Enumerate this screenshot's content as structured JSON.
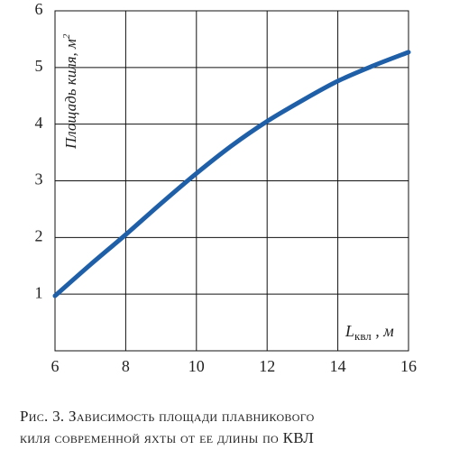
{
  "chart_data": {
    "type": "line",
    "x": [
      6,
      7,
      8,
      9,
      10,
      11,
      12,
      13,
      14,
      15,
      16
    ],
    "values": [
      0.97,
      1.52,
      2.05,
      2.6,
      3.13,
      3.62,
      4.05,
      4.42,
      4.76,
      5.03,
      5.27
    ],
    "color": "#1f5fa8",
    "xlim": [
      6,
      16
    ],
    "xticks": [
      6,
      8,
      10,
      12,
      14,
      16
    ],
    "ylim": [
      0,
      6
    ],
    "yticks": [
      1,
      2,
      3,
      4,
      5,
      6
    ],
    "grid": true,
    "y_label": "Площадь киля, м",
    "y_label_sup": "2",
    "x_label": "L",
    "x_label_sub": "квл",
    "x_label_unit": " , м",
    "caption": [
      "Рис. 3. Зависимость площади плавникового",
      "киля современной яхты от ее длины по КВЛ"
    ]
  }
}
